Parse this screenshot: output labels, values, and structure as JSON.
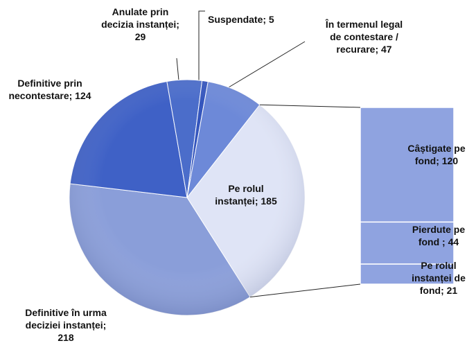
{
  "chart_data": {
    "type": "pie",
    "values": [
      185,
      218,
      124,
      29,
      5,
      47
    ],
    "value_labels": [
      "Pe rolul instanței; 185",
      "Definitive în urma deciziei instanței; 218",
      "Definitive prin necontestare; 124",
      "Anulate prin decizia instanței; 29",
      "Suspendate; 5",
      "În termenul legal de contestare / recurare; 47"
    ],
    "colors": [
      "#dfe4f6",
      "#8a9ed9",
      "#3f61c6",
      "#4b6dca",
      "#3556bd",
      "#6d89d8"
    ],
    "breakdown": {
      "type": "bar",
      "values": [
        120,
        44,
        21
      ],
      "value_labels": [
        "Câștigate pe fond; 120",
        "Pierdute pe fond ; 44",
        "Pe rolul instanței de fond; 21"
      ],
      "color": "#8fa3e0"
    }
  }
}
